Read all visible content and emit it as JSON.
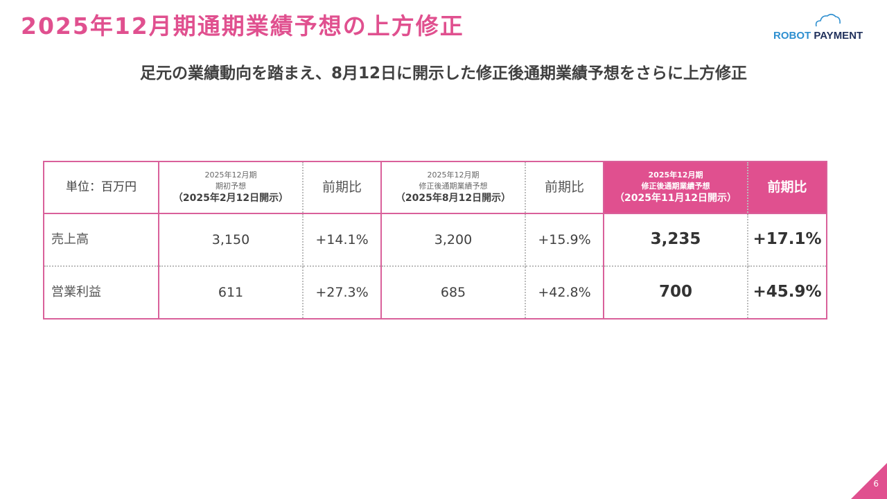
{
  "title": "2025年12月期通期業績予想の上方修正",
  "logo": {
    "part1": "ROBOT",
    "part2": " PAYMENT"
  },
  "subtitle": "足元の業績動向を踏まえ、8月12日に開示した修正後通期業績予想をさらに上方修正",
  "table": {
    "unit": "単位：百万円",
    "headers": [
      {
        "l1": "2025年12月期",
        "l2": "期初予想",
        "l3": "（2025年2月12日開示）"
      },
      {
        "label": "前期比"
      },
      {
        "l1": "2025年12月期",
        "l2": "修正後通期業績予想",
        "l3": "（2025年8月12日開示）"
      },
      {
        "label": "前期比"
      },
      {
        "l1": "2025年12月期",
        "l2": "修正後通期業績予想",
        "l3": "（2025年11月12日開示）"
      },
      {
        "label": "前期比"
      }
    ],
    "rows": [
      {
        "label": "売上高",
        "values": [
          "3,150",
          "+14.1%",
          "3,200",
          "+15.9%",
          "3,235",
          "+17.1%"
        ]
      },
      {
        "label": "営業利益",
        "values": [
          "611",
          "+27.3%",
          "685",
          "+42.8%",
          "700",
          "+45.9%"
        ]
      }
    ]
  },
  "page_number": "6",
  "colors": {
    "accent": "#E0508F"
  }
}
